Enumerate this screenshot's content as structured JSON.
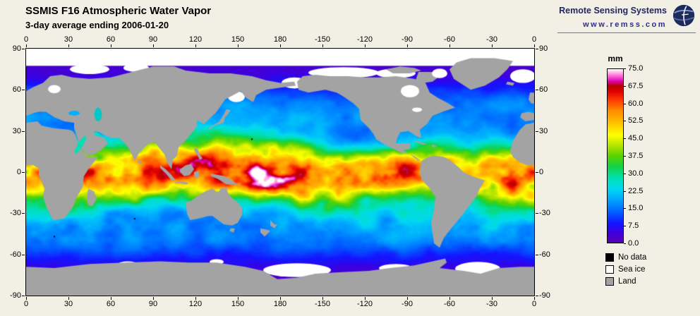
{
  "header": {
    "title": "SSMIS F16 Atmospheric Water Vapor",
    "subtitle": "3-day average ending 2006-01-20"
  },
  "branding": {
    "name": "Remote Sensing Systems",
    "url": "www.remss.com"
  },
  "axes": {
    "lon_tick_labels": [
      "0",
      "30",
      "60",
      "90",
      "120",
      "150",
      "180",
      "-150",
      "-120",
      "-90",
      "-60",
      "-30",
      "0"
    ],
    "lat_tick_labels": [
      "90",
      "60",
      "30",
      "0",
      "-30",
      "-60",
      "-90"
    ]
  },
  "colorbar": {
    "unit": "mm",
    "tick_labels": [
      "75.0",
      "67.5",
      "60.0",
      "52.5",
      "45.0",
      "37.5",
      "30.0",
      "22.5",
      "15.0",
      "7.5",
      "0.0"
    ],
    "min_mm": 0,
    "max_mm": 75,
    "stops": [
      [
        0,
        "#5a00b0"
      ],
      [
        0.06,
        "#3c00e0"
      ],
      [
        0.11,
        "#1414ff"
      ],
      [
        0.18,
        "#0064ff"
      ],
      [
        0.25,
        "#00a8ff"
      ],
      [
        0.31,
        "#00d8f0"
      ],
      [
        0.37,
        "#00e0b4"
      ],
      [
        0.44,
        "#14d243"
      ],
      [
        0.5,
        "#5ad200"
      ],
      [
        0.56,
        "#b4e400"
      ],
      [
        0.62,
        "#ffff00"
      ],
      [
        0.69,
        "#ffc000"
      ],
      [
        0.76,
        "#ff8c00"
      ],
      [
        0.82,
        "#ff3c00"
      ],
      [
        0.87,
        "#e10000"
      ],
      [
        0.905,
        "#b40000"
      ],
      [
        0.93,
        "#e100b4"
      ],
      [
        0.965,
        "#ff78dc"
      ],
      [
        1,
        "#ffffff"
      ]
    ]
  },
  "legend": {
    "items": [
      {
        "label": "No data",
        "color": "#000000"
      },
      {
        "label": "Sea ice",
        "color": "#ffffff"
      },
      {
        "label": "Land",
        "color": "#a3a3a3"
      }
    ]
  },
  "colors": {
    "page_background": "#f2efe4",
    "land": "#a3a3a3",
    "sea_ice": "#ffffff",
    "no_data": "#000000",
    "map_border": "#000000",
    "brand_navy": "#23275e"
  },
  "chart_data": {
    "type": "heatmap",
    "title": "SSMIS F16 Atmospheric Water Vapor",
    "subtitle": "3-day average ending 2006-01-20",
    "variable": "Columnar atmospheric water vapor over ocean",
    "unit": "mm",
    "value_range": [
      0,
      75
    ],
    "projection": "equirectangular global map, longitude 0-360E left to right, latitude 90N top to 90S bottom",
    "lon_ticks_deg": [
      0,
      30,
      60,
      90,
      120,
      150,
      180,
      -150,
      -120,
      -90,
      -60,
      -30,
      0
    ],
    "lat_ticks_deg": [
      90,
      60,
      30,
      0,
      -30,
      -60,
      -90
    ],
    "approx_zonal_mean_mm": {
      "lat": [
        75,
        60,
        45,
        30,
        15,
        0,
        -15,
        -30,
        -45,
        -60,
        -75
      ],
      "vapor": [
        1,
        8,
        16,
        22,
        38,
        58,
        42,
        25,
        17,
        9,
        2
      ]
    },
    "features": [
      "red band 55-75 mm along ITCZ and Indo-Pacific warm pool",
      "magenta/white saturated patches near Indonesia and west Pacific",
      "yellow-green subtropics 30-45 mm",
      "cyan-blue mid-latitudes 10-25 mm",
      "purple polar oceans 0-7 mm",
      "gray land, white sea ice, black no-data specks"
    ],
    "legend_position": "right",
    "grid": false
  }
}
